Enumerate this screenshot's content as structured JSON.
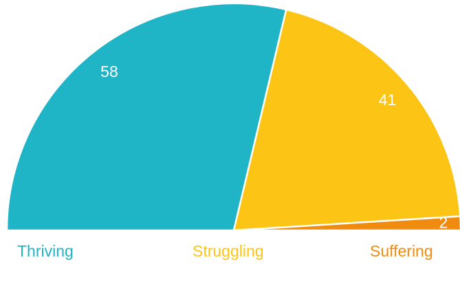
{
  "chart_data": {
    "type": "semi-pie",
    "categories": [
      "Thriving",
      "Struggling",
      "Suffering"
    ],
    "values": [
      58,
      41,
      2
    ],
    "colors": [
      "#1fb5c6",
      "#fcc515",
      "#ef8c0f"
    ]
  }
}
